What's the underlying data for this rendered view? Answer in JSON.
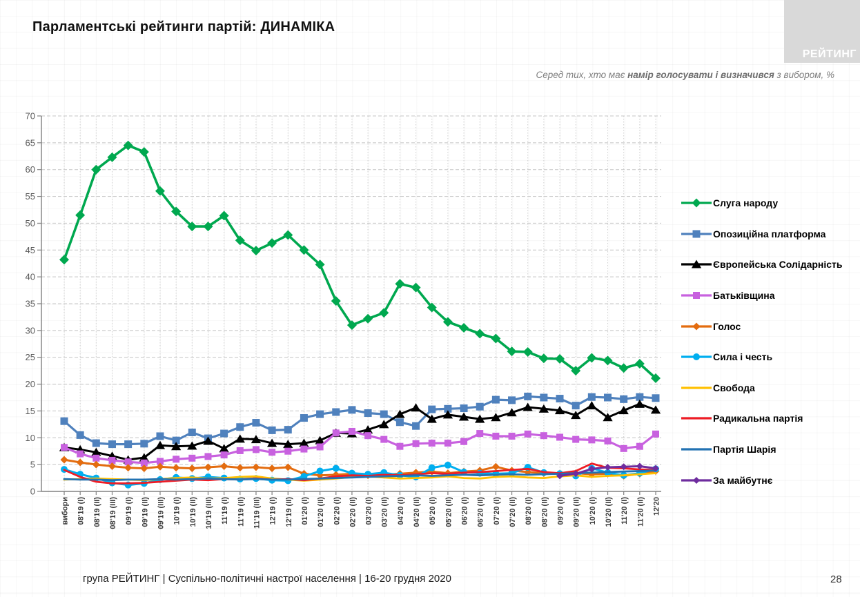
{
  "slide": {
    "title": "Парламентські рейтинги партій: ДИНАМІКА",
    "subtitle_prefix": "Серед тих, хто має ",
    "subtitle_bold": "намір голосувати і визначився",
    "subtitle_suffix": " з вибором, %",
    "logo_text": "РЕЙТИНГ",
    "footer": "група РЕЙТИНГ | Суспільно-політичні настрої населення | 16-20 грудня 2020",
    "page_number": "28"
  },
  "chart_data": {
    "type": "line",
    "title": "Парламентські рейтинги партій: ДИНАМІКА",
    "xlabel": "",
    "ylabel": "",
    "ylim": [
      0,
      70
    ],
    "y_tick_step": 5,
    "grid": true,
    "legend_position": "right",
    "axis_color": "#808080",
    "grid_h_color": "#c4c4c4",
    "grid_v_color": "#cfcfcf",
    "tick_label_color": "#595959",
    "x_label_color": "#3a3a3a",
    "x_categories": [
      "вибори",
      "08'19 (I)",
      "08'19 (II)",
      "08'19 (III)",
      "09'19 (I)",
      "09'19 (II)",
      "09'19 (III)",
      "10'19 (I)",
      "10'19 (II)",
      "10'19 (III)",
      "11'19 (I)",
      "11'19 (II)",
      "11'19 (III)",
      "12'19 (I)",
      "12'19 (II)",
      "01'20 (I)",
      "01'20 (II)",
      "02'20 (I)",
      "02'20 (II)",
      "03'20 (I)",
      "03'20 (II)",
      "04'20 (I)",
      "04'20 (II)",
      "05'20 (I)",
      "05'20 (II)",
      "06'20 (I)",
      "06'20 (II)",
      "07'20 (I)",
      "07'20 (II)",
      "08'20 (I)",
      "08'20 (II)",
      "09'20 (I)",
      "09'20 (II)",
      "10'20 (I)",
      "10'20 (II)",
      "11'20 (I)",
      "11'20 (II)",
      "12'20"
    ],
    "series": [
      {
        "name": "Слуга народу",
        "color": "#00A84F",
        "marker": "diamond",
        "marker_size": 7,
        "line_width": 3.6,
        "values": [
          43.2,
          51.5,
          60,
          62.3,
          64.5,
          63.3,
          56,
          52.2,
          49.4,
          49.4,
          51.4,
          46.8,
          44.9,
          46.3,
          47.8,
          45,
          42.3,
          35.5,
          31,
          32.2,
          33.3,
          38.7,
          38,
          34.3,
          31.6,
          30.5,
          29.4,
          28.5,
          26.1,
          26,
          24.8,
          24.7,
          22.5,
          24.9,
          24.4,
          23,
          23.8,
          21.1
        ]
      },
      {
        "name": "Опозиційна платформа",
        "color": "#4F81BD",
        "marker": "square",
        "marker_size": 5.5,
        "line_width": 3.2,
        "values": [
          13.1,
          10.5,
          9,
          8.8,
          8.8,
          8.9,
          10.3,
          9.5,
          11,
          9.9,
          10.8,
          12,
          12.8,
          11.4,
          11.5,
          13.7,
          14.4,
          14.8,
          15.2,
          14.6,
          14.4,
          12.9,
          12.2,
          15.3,
          15.4,
          15.5,
          15.8,
          17.1,
          17,
          17.7,
          17.5,
          17.3,
          16,
          17.6,
          17.5,
          17.2,
          17.6,
          17.4
        ]
      },
      {
        "name": "Європейська Солідарність",
        "color": "#000000",
        "marker": "triangle",
        "marker_size": 6.5,
        "line_width": 3,
        "values": [
          8.2,
          7.8,
          7.3,
          6.6,
          5.9,
          6.3,
          8.6,
          8.4,
          8.5,
          9.4,
          8,
          9.8,
          9.7,
          9,
          8.8,
          9,
          9.5,
          10.9,
          10.8,
          11.5,
          12.5,
          14.4,
          15.6,
          13.5,
          14.3,
          13.9,
          13.5,
          13.8,
          14.7,
          15.7,
          15.4,
          15.1,
          14.2,
          16,
          13.8,
          15.1,
          16.3,
          15.2
        ]
      },
      {
        "name": "Батьківщина",
        "color": "#C861DF",
        "marker": "square",
        "marker_size": 5,
        "line_width": 3.2,
        "values": [
          8.2,
          7,
          6.2,
          5.8,
          5.5,
          5.3,
          5.6,
          6,
          6.2,
          6.5,
          6.8,
          7.6,
          7.8,
          7.3,
          7.5,
          7.9,
          8.3,
          10.9,
          11.2,
          10.4,
          9.7,
          8.4,
          8.9,
          9,
          9,
          9.3,
          10.8,
          10.3,
          10.3,
          10.7,
          10.4,
          10.1,
          9.7,
          9.6,
          9.4,
          8,
          8.4,
          10.7
        ]
      },
      {
        "name": "Голос",
        "color": "#E36C0F",
        "marker": "diamond",
        "marker_size": 5.5,
        "line_width": 3,
        "values": [
          5.9,
          5.4,
          5,
          4.7,
          4.4,
          4.3,
          4.6,
          4.4,
          4.3,
          4.5,
          4.7,
          4.4,
          4.5,
          4.3,
          4.5,
          3.3,
          3,
          3.1,
          3.3,
          3,
          3.1,
          3.3,
          3.5,
          3.7,
          3.4,
          3.7,
          3.9,
          4.6,
          3.9,
          3.6,
          3.4,
          3.3,
          3.4,
          3.2,
          3.3,
          2.9,
          3.3,
          3.8
        ]
      },
      {
        "name": "Сила і честь",
        "color": "#00AEEF",
        "marker": "circle",
        "marker_size": 5,
        "line_width": 3,
        "values": [
          4.1,
          3.2,
          2.5,
          1.6,
          1.2,
          1.5,
          2.2,
          2.6,
          2.4,
          2.7,
          2.5,
          2.3,
          2.4,
          2.1,
          2,
          2.8,
          3.8,
          4.3,
          3.4,
          3.2,
          3.5,
          3,
          2.7,
          4.4,
          4.9,
          3.6,
          3.4,
          3.3,
          3.4,
          4.5,
          3.5,
          3.3,
          2.9,
          4.3,
          3.5,
          3,
          3.4,
          4.2
        ]
      },
      {
        "name": "Свобода",
        "color": "#FFC000",
        "marker": "none",
        "marker_size": 0,
        "line_width": 2.8,
        "values": [
          2.2,
          2.3,
          2.4,
          2.3,
          2.2,
          2.1,
          2.3,
          2.5,
          2.6,
          2.4,
          2.5,
          2.7,
          2.8,
          2.4,
          2.2,
          2,
          2.2,
          2.4,
          2.7,
          2.8,
          2.6,
          2.4,
          2.5,
          2.6,
          2.8,
          2.5,
          2.4,
          2.7,
          2.8,
          2.6,
          2.5,
          2.8,
          3,
          2.7,
          2.9,
          3,
          3.2,
          3.4
        ]
      },
      {
        "name": "Радикальна партія",
        "color": "#EE1C25",
        "marker": "none",
        "marker_size": 0,
        "line_width": 2.8,
        "values": [
          4,
          2.7,
          1.8,
          1.5,
          1.5,
          1.6,
          1.8,
          2,
          2.2,
          2.1,
          2.3,
          2.2,
          2.4,
          2.2,
          2.3,
          2.1,
          2.4,
          2.8,
          3,
          2.9,
          3.1,
          3,
          3.2,
          3.4,
          3.3,
          3.5,
          3.6,
          3.8,
          4,
          4.2,
          3.6,
          3.4,
          3.8,
          5.2,
          4.4,
          4.3,
          4.1,
          4
        ]
      },
      {
        "name": "Партія Шарія",
        "color": "#2272B2",
        "marker": "none",
        "marker_size": 0,
        "line_width": 2.8,
        "values": [
          2.3,
          2.2,
          2.2,
          2.1,
          2.2,
          2.2,
          2.3,
          2.2,
          2.3,
          2.4,
          2.3,
          2.2,
          2.3,
          2.2,
          2.2,
          2.3,
          2.4,
          2.5,
          2.6,
          2.7,
          2.8,
          2.9,
          3,
          2.9,
          3,
          3.1,
          3,
          3.1,
          3.2,
          3.1,
          3.2,
          3.3,
          3.4,
          3.5,
          3.6,
          3.7,
          3.8,
          3.9
        ]
      },
      {
        "name": "За майбутнє",
        "color": "#6E2C9E",
        "marker": "diamond",
        "marker_size": 5,
        "line_width": 3,
        "values": [
          null,
          null,
          null,
          null,
          null,
          null,
          null,
          null,
          null,
          null,
          null,
          null,
          null,
          null,
          null,
          null,
          null,
          null,
          null,
          null,
          null,
          null,
          null,
          null,
          null,
          null,
          null,
          null,
          null,
          null,
          null,
          2.9,
          3.3,
          4.2,
          4.5,
          4.6,
          4.7,
          4.3
        ]
      }
    ]
  }
}
